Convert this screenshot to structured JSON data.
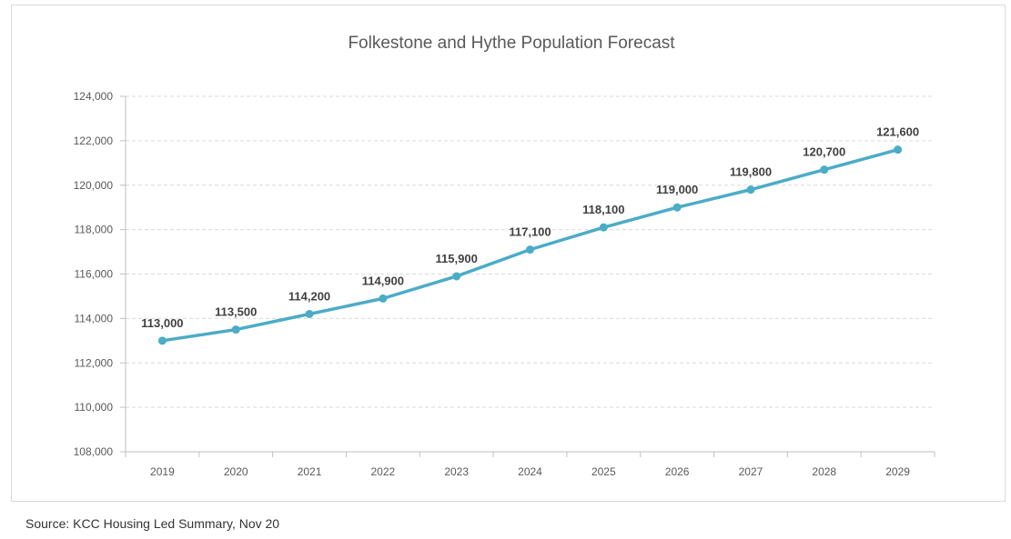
{
  "chart_data": {
    "type": "line",
    "title": "Folkestone and Hythe Population Forecast",
    "xlabel": "",
    "ylabel": "",
    "categories": [
      "2019",
      "2020",
      "2021",
      "2022",
      "2023",
      "2024",
      "2025",
      "2026",
      "2027",
      "2028",
      "2029"
    ],
    "series": [
      {
        "values": [
          113000,
          113500,
          114200,
          114900,
          115900,
          117100,
          118100,
          119000,
          119800,
          120700,
          121600
        ],
        "data_labels": [
          "113,000",
          "113,500",
          "114,200",
          "114,900",
          "115,900",
          "117,100",
          "118,100",
          "119,000",
          "119,800",
          "120,700",
          "121,600"
        ]
      }
    ],
    "ylim": [
      108000,
      124000
    ],
    "yticks": [
      108000,
      110000,
      112000,
      114000,
      116000,
      118000,
      120000,
      122000,
      124000
    ],
    "ytick_labels": [
      "108,000",
      "110,000",
      "112,000",
      "114,000",
      "116,000",
      "118,000",
      "120,000",
      "122,000",
      "124,000"
    ],
    "grid": true,
    "legend": "none",
    "colors": {
      "line": "#4bacc6",
      "grid": "#d9d9d9",
      "axis": "#bfbfbf",
      "text": "#595959",
      "label": "#404040"
    }
  },
  "source": "Source: KCC Housing Led Summary, Nov 20"
}
